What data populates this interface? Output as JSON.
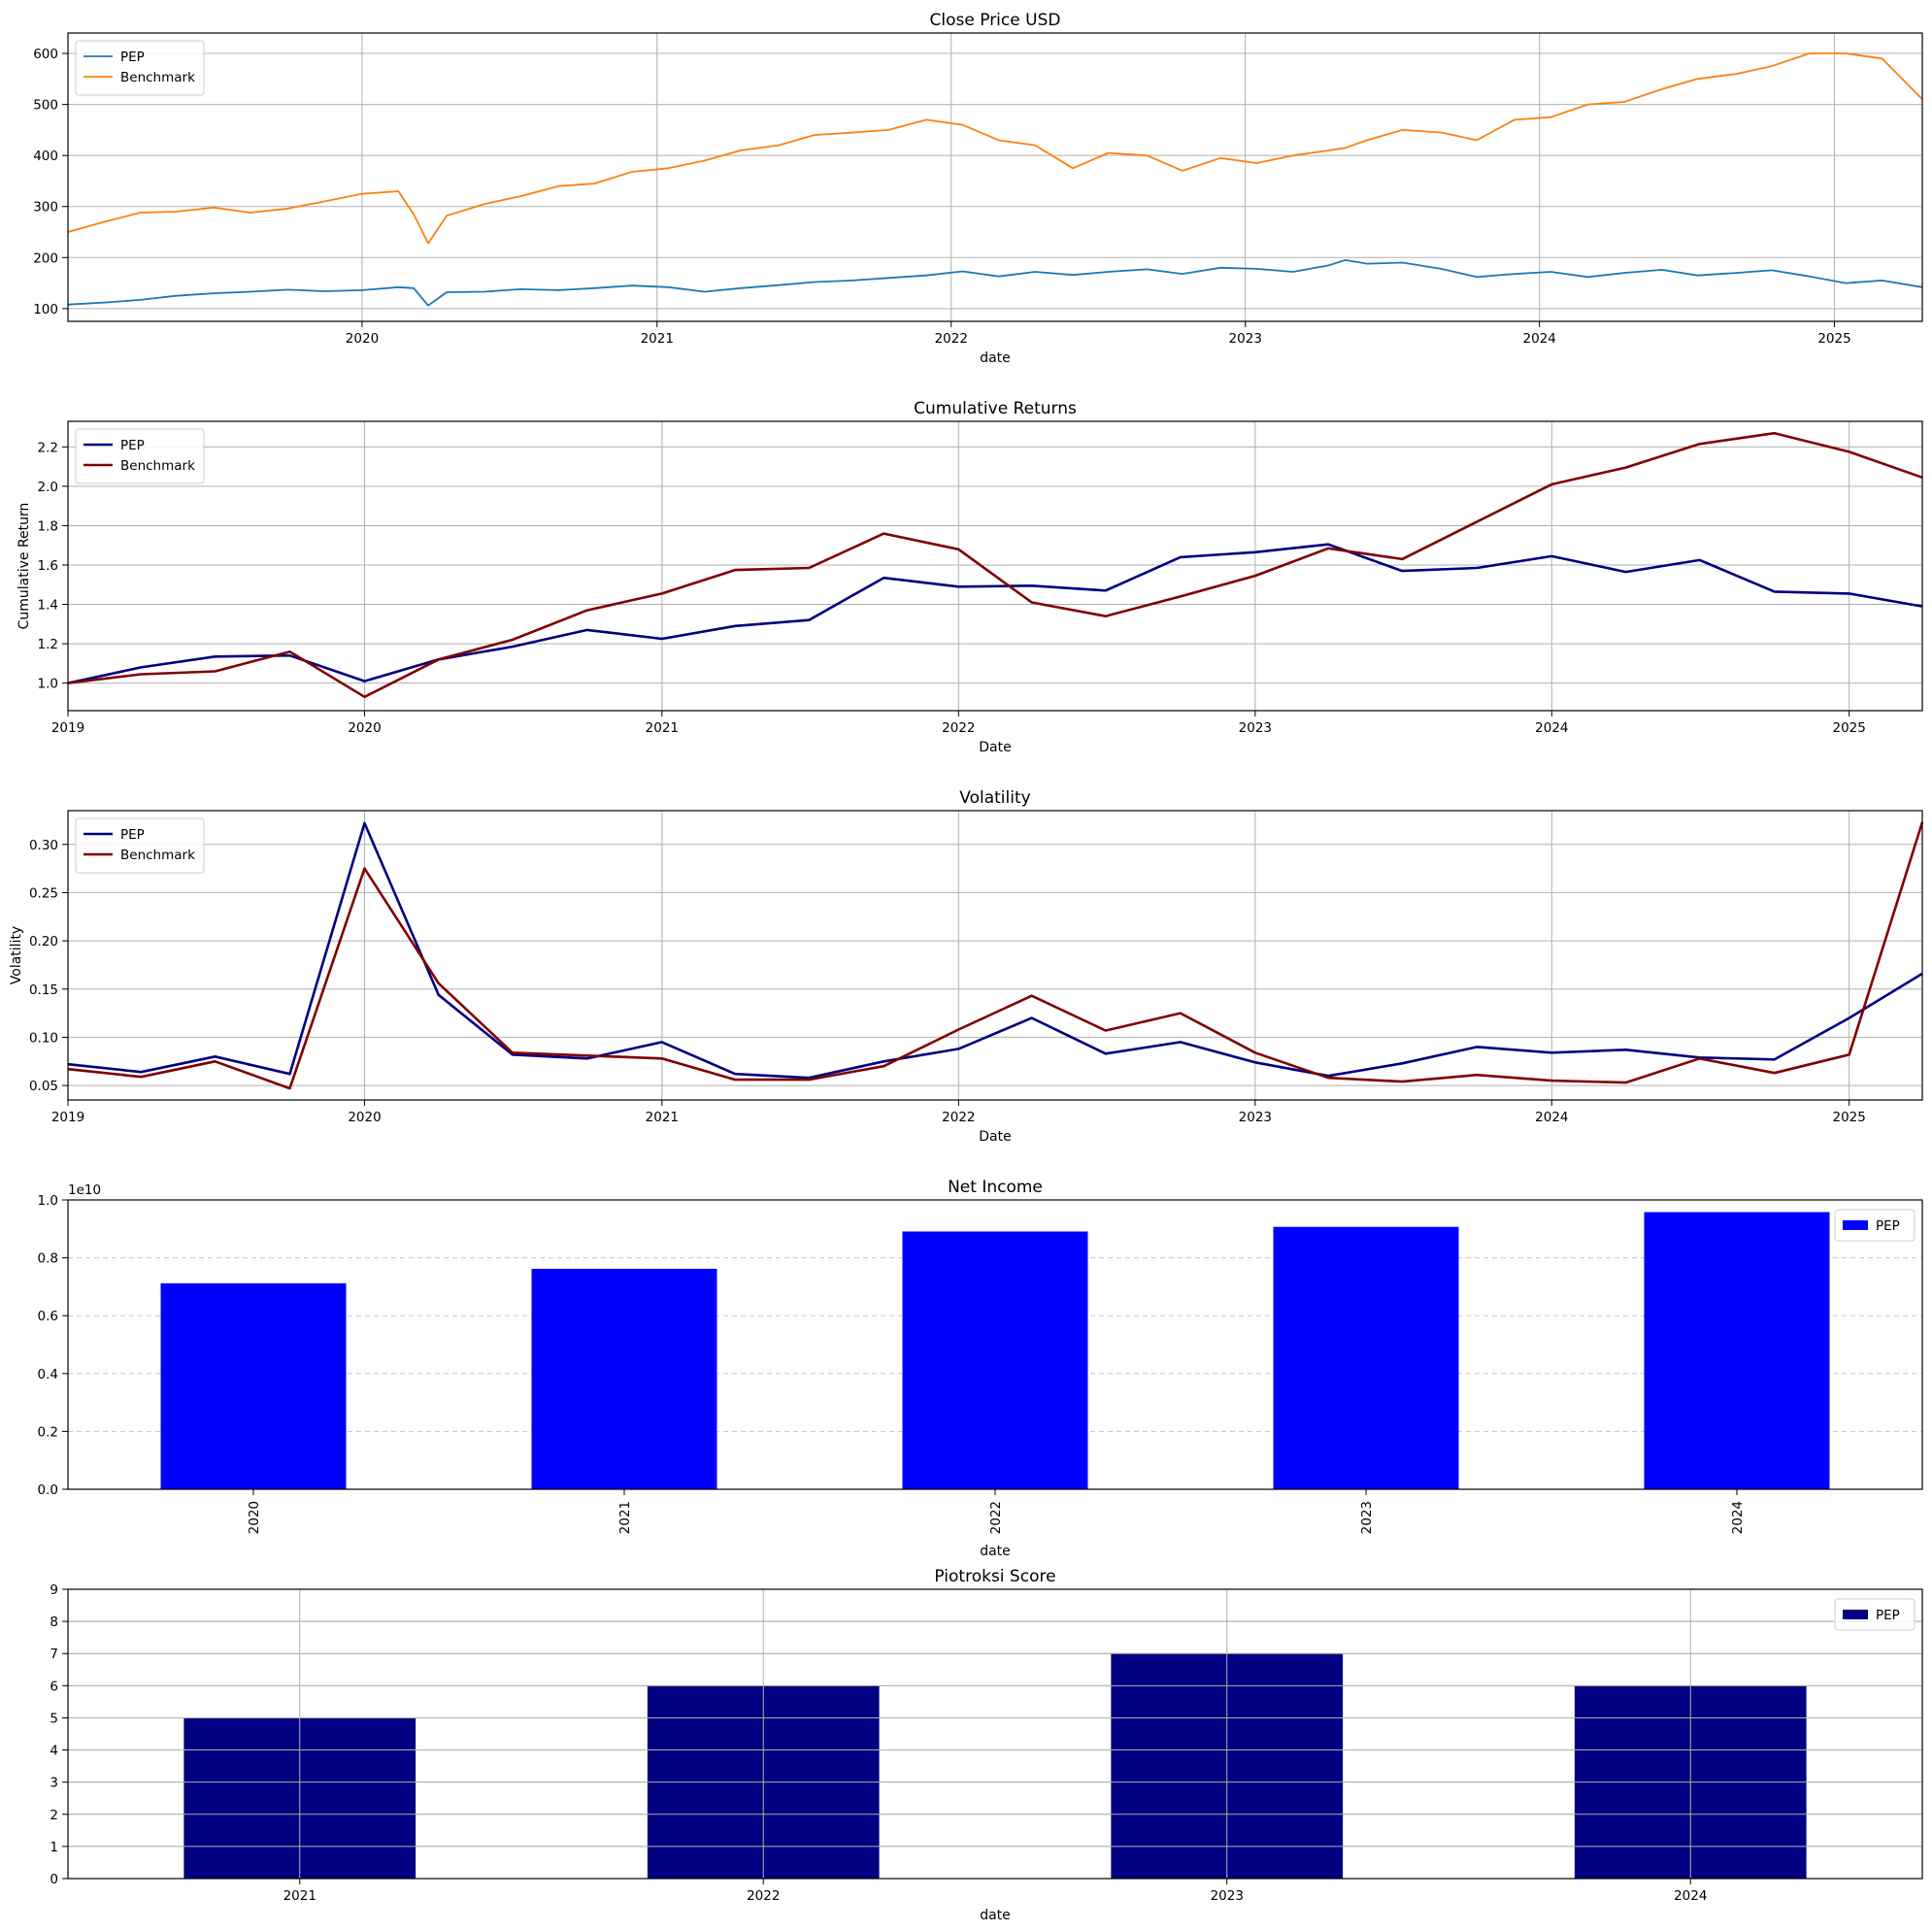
{
  "chart_data": [
    {
      "type": "line",
      "title": "Close Price USD",
      "xlabel": "date",
      "ylabel": "",
      "ylim": [
        75,
        640
      ],
      "xlim": [
        "2019-01-01",
        "2025-04-20"
      ],
      "yticks": [
        100,
        200,
        300,
        400,
        500,
        600
      ],
      "xticks": [
        "2020",
        "2021",
        "2022",
        "2023",
        "2024",
        "2025"
      ],
      "grid": true,
      "legend": "top-left",
      "series": [
        {
          "name": "PEP",
          "color": "#1f77b4",
          "x": [
            "2019-01-01",
            "2019-02-15",
            "2019-04-01",
            "2019-05-15",
            "2019-07-01",
            "2019-08-15",
            "2019-10-01",
            "2019-11-15",
            "2020-01-01",
            "2020-02-15",
            "2020-03-05",
            "2020-03-23",
            "2020-04-15",
            "2020-06-01",
            "2020-07-15",
            "2020-09-01",
            "2020-10-15",
            "2020-12-01",
            "2021-01-15",
            "2021-03-01",
            "2021-04-15",
            "2021-06-01",
            "2021-07-15",
            "2021-09-01",
            "2021-10-15",
            "2021-12-01",
            "2022-01-15",
            "2022-03-01",
            "2022-04-15",
            "2022-06-01",
            "2022-07-15",
            "2022-09-01",
            "2022-10-15",
            "2022-12-01",
            "2023-01-15",
            "2023-03-01",
            "2023-04-15",
            "2023-05-05",
            "2023-06-01",
            "2023-07-15",
            "2023-09-01",
            "2023-10-15",
            "2023-12-01",
            "2024-01-15",
            "2024-03-01",
            "2024-04-15",
            "2024-06-01",
            "2024-07-15",
            "2024-09-01",
            "2024-10-15",
            "2024-12-01",
            "2025-01-15",
            "2025-03-01",
            "2025-04-20"
          ],
          "values": [
            108,
            112,
            117,
            125,
            130,
            133,
            137,
            134,
            136,
            142,
            140,
            106,
            132,
            133,
            138,
            136,
            140,
            145,
            142,
            133,
            140,
            146,
            152,
            155,
            160,
            165,
            173,
            163,
            172,
            166,
            172,
            177,
            168,
            180,
            178,
            172,
            185,
            195,
            188,
            190,
            178,
            162,
            168,
            172,
            162,
            170,
            176,
            165,
            170,
            175,
            163,
            150,
            155,
            142
          ]
        },
        {
          "name": "Benchmark",
          "color": "#ff7f0e",
          "x": [
            "2019-01-01",
            "2019-02-15",
            "2019-04-01",
            "2019-05-15",
            "2019-07-01",
            "2019-08-15",
            "2019-10-01",
            "2019-11-15",
            "2020-01-01",
            "2020-02-15",
            "2020-03-05",
            "2020-03-23",
            "2020-04-15",
            "2020-06-01",
            "2020-07-15",
            "2020-09-01",
            "2020-10-15",
            "2020-12-01",
            "2021-01-15",
            "2021-03-01",
            "2021-04-15",
            "2021-06-01",
            "2021-07-15",
            "2021-09-01",
            "2021-10-15",
            "2021-12-01",
            "2022-01-15",
            "2022-03-01",
            "2022-04-15",
            "2022-06-01",
            "2022-07-15",
            "2022-09-01",
            "2022-10-15",
            "2022-12-01",
            "2023-01-15",
            "2023-03-01",
            "2023-04-15",
            "2023-05-05",
            "2023-06-01",
            "2023-07-15",
            "2023-09-01",
            "2023-10-15",
            "2023-12-01",
            "2024-01-15",
            "2024-03-01",
            "2024-04-15",
            "2024-06-01",
            "2024-07-15",
            "2024-09-01",
            "2024-10-15",
            "2024-12-01",
            "2025-01-15",
            "2025-03-01",
            "2025-04-20"
          ],
          "values": [
            250,
            270,
            288,
            290,
            298,
            288,
            296,
            310,
            325,
            330,
            285,
            228,
            282,
            305,
            320,
            340,
            345,
            368,
            375,
            390,
            410,
            420,
            440,
            445,
            450,
            470,
            460,
            430,
            420,
            375,
            405,
            400,
            370,
            395,
            385,
            400,
            410,
            415,
            430,
            450,
            445,
            430,
            470,
            475,
            500,
            505,
            530,
            550,
            560,
            575,
            600,
            600,
            590,
            510
          ]
        }
      ]
    },
    {
      "type": "line",
      "title": "Cumulative Returns",
      "xlabel": "Date",
      "ylabel": "Cumulative Return",
      "ylim": [
        0.86,
        2.33
      ],
      "xlim": [
        "2019-01-01",
        "2025-04-01"
      ],
      "yticks": [
        "1.0",
        "1.2",
        "1.4",
        "1.6",
        "1.8",
        "2.0",
        "2.2"
      ],
      "xticks": [
        "2019",
        "2020",
        "2021",
        "2022",
        "2023",
        "2024",
        "2025"
      ],
      "grid": true,
      "legend": "top-left",
      "x": [
        "2019-01-01",
        "2019-04-01",
        "2019-07-01",
        "2019-10-01",
        "2020-01-01",
        "2020-04-01",
        "2020-07-01",
        "2020-10-01",
        "2021-01-01",
        "2021-04-01",
        "2021-07-01",
        "2021-10-01",
        "2022-01-01",
        "2022-04-01",
        "2022-07-01",
        "2022-10-01",
        "2023-01-01",
        "2023-04-01",
        "2023-07-01",
        "2023-10-01",
        "2024-01-01",
        "2024-04-01",
        "2024-07-01",
        "2024-10-01",
        "2025-01-01",
        "2025-04-01"
      ],
      "series": [
        {
          "name": "PEP",
          "color": "#000080",
          "values": [
            1.0,
            1.08,
            1.135,
            1.14,
            1.01,
            1.12,
            1.185,
            1.27,
            1.225,
            1.29,
            1.32,
            1.535,
            1.49,
            1.495,
            1.47,
            1.64,
            1.665,
            1.705,
            1.57,
            1.585,
            1.645,
            1.565,
            1.625,
            1.465,
            1.455,
            1.39
          ]
        },
        {
          "name": "Benchmark",
          "color": "#800000",
          "values": [
            1.0,
            1.045,
            1.06,
            1.16,
            0.93,
            1.12,
            1.22,
            1.37,
            1.455,
            1.575,
            1.585,
            1.76,
            1.68,
            1.41,
            1.34,
            1.44,
            1.545,
            1.685,
            1.63,
            1.82,
            2.01,
            2.095,
            2.215,
            2.27,
            2.175,
            2.045
          ]
        }
      ]
    },
    {
      "type": "line",
      "title": "Volatility",
      "xlabel": "Date",
      "ylabel": "Volatility",
      "ylim": [
        0.035,
        0.335
      ],
      "xlim": [
        "2019-01-01",
        "2025-04-01"
      ],
      "yticks": [
        "0.05",
        "0.10",
        "0.15",
        "0.20",
        "0.25",
        "0.30"
      ],
      "xticks": [
        "2019",
        "2020",
        "2021",
        "2022",
        "2023",
        "2024",
        "2025"
      ],
      "grid": true,
      "legend": "top-left",
      "x": [
        "2019-01-01",
        "2019-04-01",
        "2019-07-01",
        "2019-10-01",
        "2020-01-01",
        "2020-04-01",
        "2020-07-01",
        "2020-10-01",
        "2021-01-01",
        "2021-04-01",
        "2021-07-01",
        "2021-10-01",
        "2022-01-01",
        "2022-04-01",
        "2022-07-01",
        "2022-10-01",
        "2023-01-01",
        "2023-04-01",
        "2023-07-01",
        "2023-10-01",
        "2024-01-01",
        "2024-04-01",
        "2024-07-01",
        "2024-10-01",
        "2025-01-01",
        "2025-04-01"
      ],
      "series": [
        {
          "name": "PEP",
          "color": "#000080",
          "values": [
            0.072,
            0.064,
            0.08,
            0.062,
            0.322,
            0.144,
            0.082,
            0.078,
            0.095,
            0.062,
            0.058,
            0.075,
            0.088,
            0.12,
            0.083,
            0.095,
            0.074,
            0.06,
            0.073,
            0.09,
            0.084,
            0.087,
            0.079,
            0.077,
            0.12,
            0.166
          ]
        },
        {
          "name": "Benchmark",
          "color": "#800000",
          "values": [
            0.067,
            0.059,
            0.075,
            0.047,
            0.275,
            0.156,
            0.084,
            0.081,
            0.078,
            0.056,
            0.056,
            0.07,
            0.108,
            0.143,
            0.107,
            0.125,
            0.084,
            0.058,
            0.054,
            0.061,
            0.055,
            0.053,
            0.078,
            0.063,
            0.082,
            0.323
          ]
        }
      ]
    },
    {
      "type": "bar",
      "title": "Net Income",
      "xlabel": "date",
      "ylabel": "",
      "offset_label": "1e10",
      "ylim": [
        0,
        1.0
      ],
      "yticks": [
        "0.0",
        "0.2",
        "0.4",
        "0.6",
        "0.8",
        "1.0"
      ],
      "grid": true,
      "legend": "top-right",
      "categories": [
        "2020",
        "2021",
        "2022",
        "2023",
        "2024"
      ],
      "series": [
        {
          "name": "PEP",
          "color": "#0000ff",
          "values": [
            0.712,
            0.762,
            0.891,
            0.907,
            0.958
          ]
        }
      ]
    },
    {
      "type": "bar",
      "title": "Piotroksi Score",
      "xlabel": "date",
      "ylabel": "",
      "ylim": [
        0,
        9
      ],
      "yticks": [
        "0",
        "1",
        "2",
        "3",
        "4",
        "5",
        "6",
        "7",
        "8",
        "9"
      ],
      "grid": true,
      "legend": "top-right",
      "categories": [
        "2021",
        "2022",
        "2023",
        "2024"
      ],
      "series": [
        {
          "name": "PEP",
          "color": "#000080",
          "values": [
            5,
            6,
            7,
            6
          ]
        }
      ]
    }
  ]
}
